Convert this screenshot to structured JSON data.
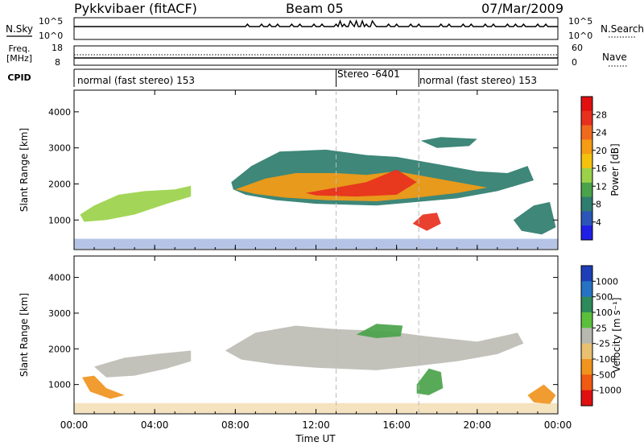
{
  "header": {
    "station": "Pykkvibaer (fitACF)",
    "beam": "Beam 05",
    "date": "07/Mar/2009"
  },
  "noise_panel": {
    "left_label": "N.Sky",
    "right_label": "N.Search",
    "ticks_left": [
      "10^5",
      "10^0"
    ],
    "ticks_right": [
      "10^5",
      "10^0"
    ]
  },
  "freq_panel": {
    "left_label_1": "Freq.",
    "left_label_2": "[MHz]",
    "right_label": "Nave",
    "ticks_left": [
      "18",
      "8"
    ],
    "ticks_right": [
      "60",
      "0"
    ]
  },
  "cpid": {
    "label": "CPID",
    "segments": [
      {
        "label": "normal (fast stereo) 153",
        "start_hour": 0,
        "end_hour": 13.0
      },
      {
        "label": "Stereo -6401",
        "start_hour": 13.0,
        "end_hour": 17.1
      },
      {
        "label": "normal (fast stereo) 153",
        "start_hour": 17.1,
        "end_hour": 24
      }
    ]
  },
  "x_axis": {
    "label": "Time UT",
    "ticks": [
      "00:00",
      "04:00",
      "08:00",
      "12:00",
      "16:00",
      "20:00",
      "00:00"
    ],
    "tick_hours": [
      0,
      4,
      8,
      12,
      16,
      20,
      24
    ],
    "range": [
      0,
      24
    ]
  },
  "power_panel": {
    "ylabel": "Slant Range [km]",
    "yticks": [
      "1000",
      "2000",
      "3000",
      "4000"
    ],
    "ytick_values": [
      1000,
      2000,
      3000,
      4000
    ],
    "ylim": [
      180,
      4600
    ],
    "colorbar_label": "Power [dB]",
    "colorbar_ticks": [
      "4",
      "8",
      "12",
      "16",
      "20",
      "24",
      "28"
    ],
    "colorbar_colors": [
      "#1f1fe6",
      "#2b56b8",
      "#2e7d6e",
      "#4aa34a",
      "#9bd24a",
      "#f2c20e",
      "#f59b14",
      "#f06a1e",
      "#e8301e",
      "#e01010"
    ]
  },
  "velocity_panel": {
    "ylabel": "Slant Range [km]",
    "yticks": [
      "1000",
      "2000",
      "3000",
      "4000"
    ],
    "ytick_values": [
      1000,
      2000,
      3000,
      4000
    ],
    "ylim": [
      180,
      4600
    ],
    "colorbar_label": "Velocity [m s⁻¹]",
    "colorbar_ticks": [
      "1000",
      "500",
      "100",
      "25",
      "-25",
      "-100",
      "-500",
      "-1000"
    ],
    "colorbar_colors": [
      "#1c3fb8",
      "#2673c4",
      "#2e8a5a",
      "#5cbf3c",
      "#b8b8b0",
      "#e8c070",
      "#f0941e",
      "#f05a12",
      "#e01010"
    ],
    "ground_scatter_color": "#bdbdb5"
  },
  "chart_data": {
    "type": "heatmap",
    "note_regions": "scatter regions approximated as polygons in (hour, range_km)",
    "power_regions": [
      {
        "name": "morning",
        "level": 14,
        "poly": [
          [
            0.3,
            1150
          ],
          [
            1.0,
            1400
          ],
          [
            2.2,
            1700
          ],
          [
            3.5,
            1800
          ],
          [
            5.0,
            1850
          ],
          [
            5.8,
            1950
          ],
          [
            5.8,
            1650
          ],
          [
            4.6,
            1450
          ],
          [
            3.0,
            1150
          ],
          [
            1.6,
            1000
          ],
          [
            0.5,
            950
          ]
        ]
      },
      {
        "name": "main_outer",
        "level": 8,
        "poly": [
          [
            7.8,
            2050
          ],
          [
            8.8,
            2500
          ],
          [
            10.2,
            2900
          ],
          [
            12.5,
            2950
          ],
          [
            14.5,
            2800
          ],
          [
            16.0,
            2750
          ],
          [
            18.0,
            2550
          ],
          [
            20.0,
            2350
          ],
          [
            21.5,
            2300
          ],
          [
            22.5,
            2500
          ],
          [
            22.8,
            2100
          ],
          [
            21.0,
            1800
          ],
          [
            19.0,
            1600
          ],
          [
            17.0,
            1500
          ],
          [
            15.0,
            1400
          ],
          [
            12.0,
            1450
          ],
          [
            10.0,
            1550
          ],
          [
            8.5,
            1700
          ],
          [
            7.9,
            1850
          ]
        ]
      },
      {
        "name": "main_core",
        "level": 20,
        "poly": [
          [
            8.0,
            1850
          ],
          [
            9.5,
            2150
          ],
          [
            11.0,
            2300
          ],
          [
            13.0,
            2300
          ],
          [
            14.5,
            2250
          ],
          [
            16.0,
            2350
          ],
          [
            17.5,
            2200
          ],
          [
            19.0,
            2050
          ],
          [
            20.5,
            1900
          ],
          [
            19.0,
            1750
          ],
          [
            17.0,
            1620
          ],
          [
            15.0,
            1520
          ],
          [
            12.5,
            1550
          ],
          [
            10.5,
            1620
          ],
          [
            9.0,
            1720
          ]
        ]
      },
      {
        "name": "main_hot",
        "level": 26,
        "poly": [
          [
            11.5,
            1750
          ],
          [
            13.0,
            1900
          ],
          [
            14.5,
            2050
          ],
          [
            16.0,
            2400
          ],
          [
            17.0,
            2050
          ],
          [
            16.0,
            1700
          ],
          [
            14.0,
            1650
          ],
          [
            12.0,
            1680
          ]
        ]
      },
      {
        "name": "late_blob",
        "level": 26,
        "poly": [
          [
            16.8,
            900
          ],
          [
            17.3,
            1150
          ],
          [
            18.0,
            1200
          ],
          [
            18.2,
            900
          ],
          [
            17.5,
            700
          ]
        ]
      },
      {
        "name": "upper_patch",
        "level": 8,
        "poly": [
          [
            17.2,
            3200
          ],
          [
            18.2,
            3300
          ],
          [
            20.0,
            3250
          ],
          [
            19.6,
            3050
          ],
          [
            18.0,
            3000
          ]
        ]
      },
      {
        "name": "right_side",
        "level": 8,
        "poly": [
          [
            21.8,
            1000
          ],
          [
            22.8,
            1400
          ],
          [
            23.6,
            1500
          ],
          [
            23.9,
            800
          ],
          [
            23.2,
            600
          ],
          [
            22.2,
            700
          ]
        ]
      }
    ],
    "velocity_regions": [
      {
        "name": "morning",
        "class": "ground",
        "poly": [
          [
            1.0,
            1500
          ],
          [
            2.5,
            1750
          ],
          [
            4.0,
            1850
          ],
          [
            5.8,
            1950
          ],
          [
            5.8,
            1650
          ],
          [
            4.6,
            1450
          ],
          [
            3.0,
            1250
          ],
          [
            1.6,
            1200
          ]
        ]
      },
      {
        "name": "main",
        "class": "ground",
        "poly": [
          [
            7.5,
            1950
          ],
          [
            9.0,
            2450
          ],
          [
            11.0,
            2650
          ],
          [
            13.0,
            2550
          ],
          [
            15.5,
            2500
          ],
          [
            17.5,
            2350
          ],
          [
            20.0,
            2200
          ],
          [
            22.0,
            2450
          ],
          [
            22.3,
            2150
          ],
          [
            21.0,
            1850
          ],
          [
            19.0,
            1650
          ],
          [
            17.0,
            1520
          ],
          [
            15.0,
            1400
          ],
          [
            12.0,
            1470
          ],
          [
            10.0,
            1560
          ],
          [
            8.3,
            1700
          ]
        ]
      },
      {
        "name": "morning_neg",
        "class": "-250",
        "poly": [
          [
            0.4,
            1200
          ],
          [
            1.0,
            1250
          ],
          [
            1.6,
            900
          ],
          [
            2.5,
            700
          ],
          [
            1.8,
            600
          ],
          [
            0.8,
            800
          ]
        ]
      },
      {
        "name": "upper_green",
        "class": "100",
        "poly": [
          [
            14.0,
            2400
          ],
          [
            15.0,
            2700
          ],
          [
            16.3,
            2650
          ],
          [
            16.2,
            2350
          ],
          [
            15.0,
            2300
          ]
        ]
      },
      {
        "name": "late_green",
        "class": "100",
        "poly": [
          [
            17.0,
            1000
          ],
          [
            17.6,
            1450
          ],
          [
            18.2,
            1350
          ],
          [
            18.3,
            900
          ],
          [
            17.6,
            700
          ],
          [
            17.0,
            750
          ]
        ]
      },
      {
        "name": "right_mixed",
        "class": "-250",
        "poly": [
          [
            22.5,
            700
          ],
          [
            23.3,
            1000
          ],
          [
            23.9,
            700
          ],
          [
            23.6,
            450
          ],
          [
            22.8,
            500
          ]
        ]
      }
    ]
  }
}
